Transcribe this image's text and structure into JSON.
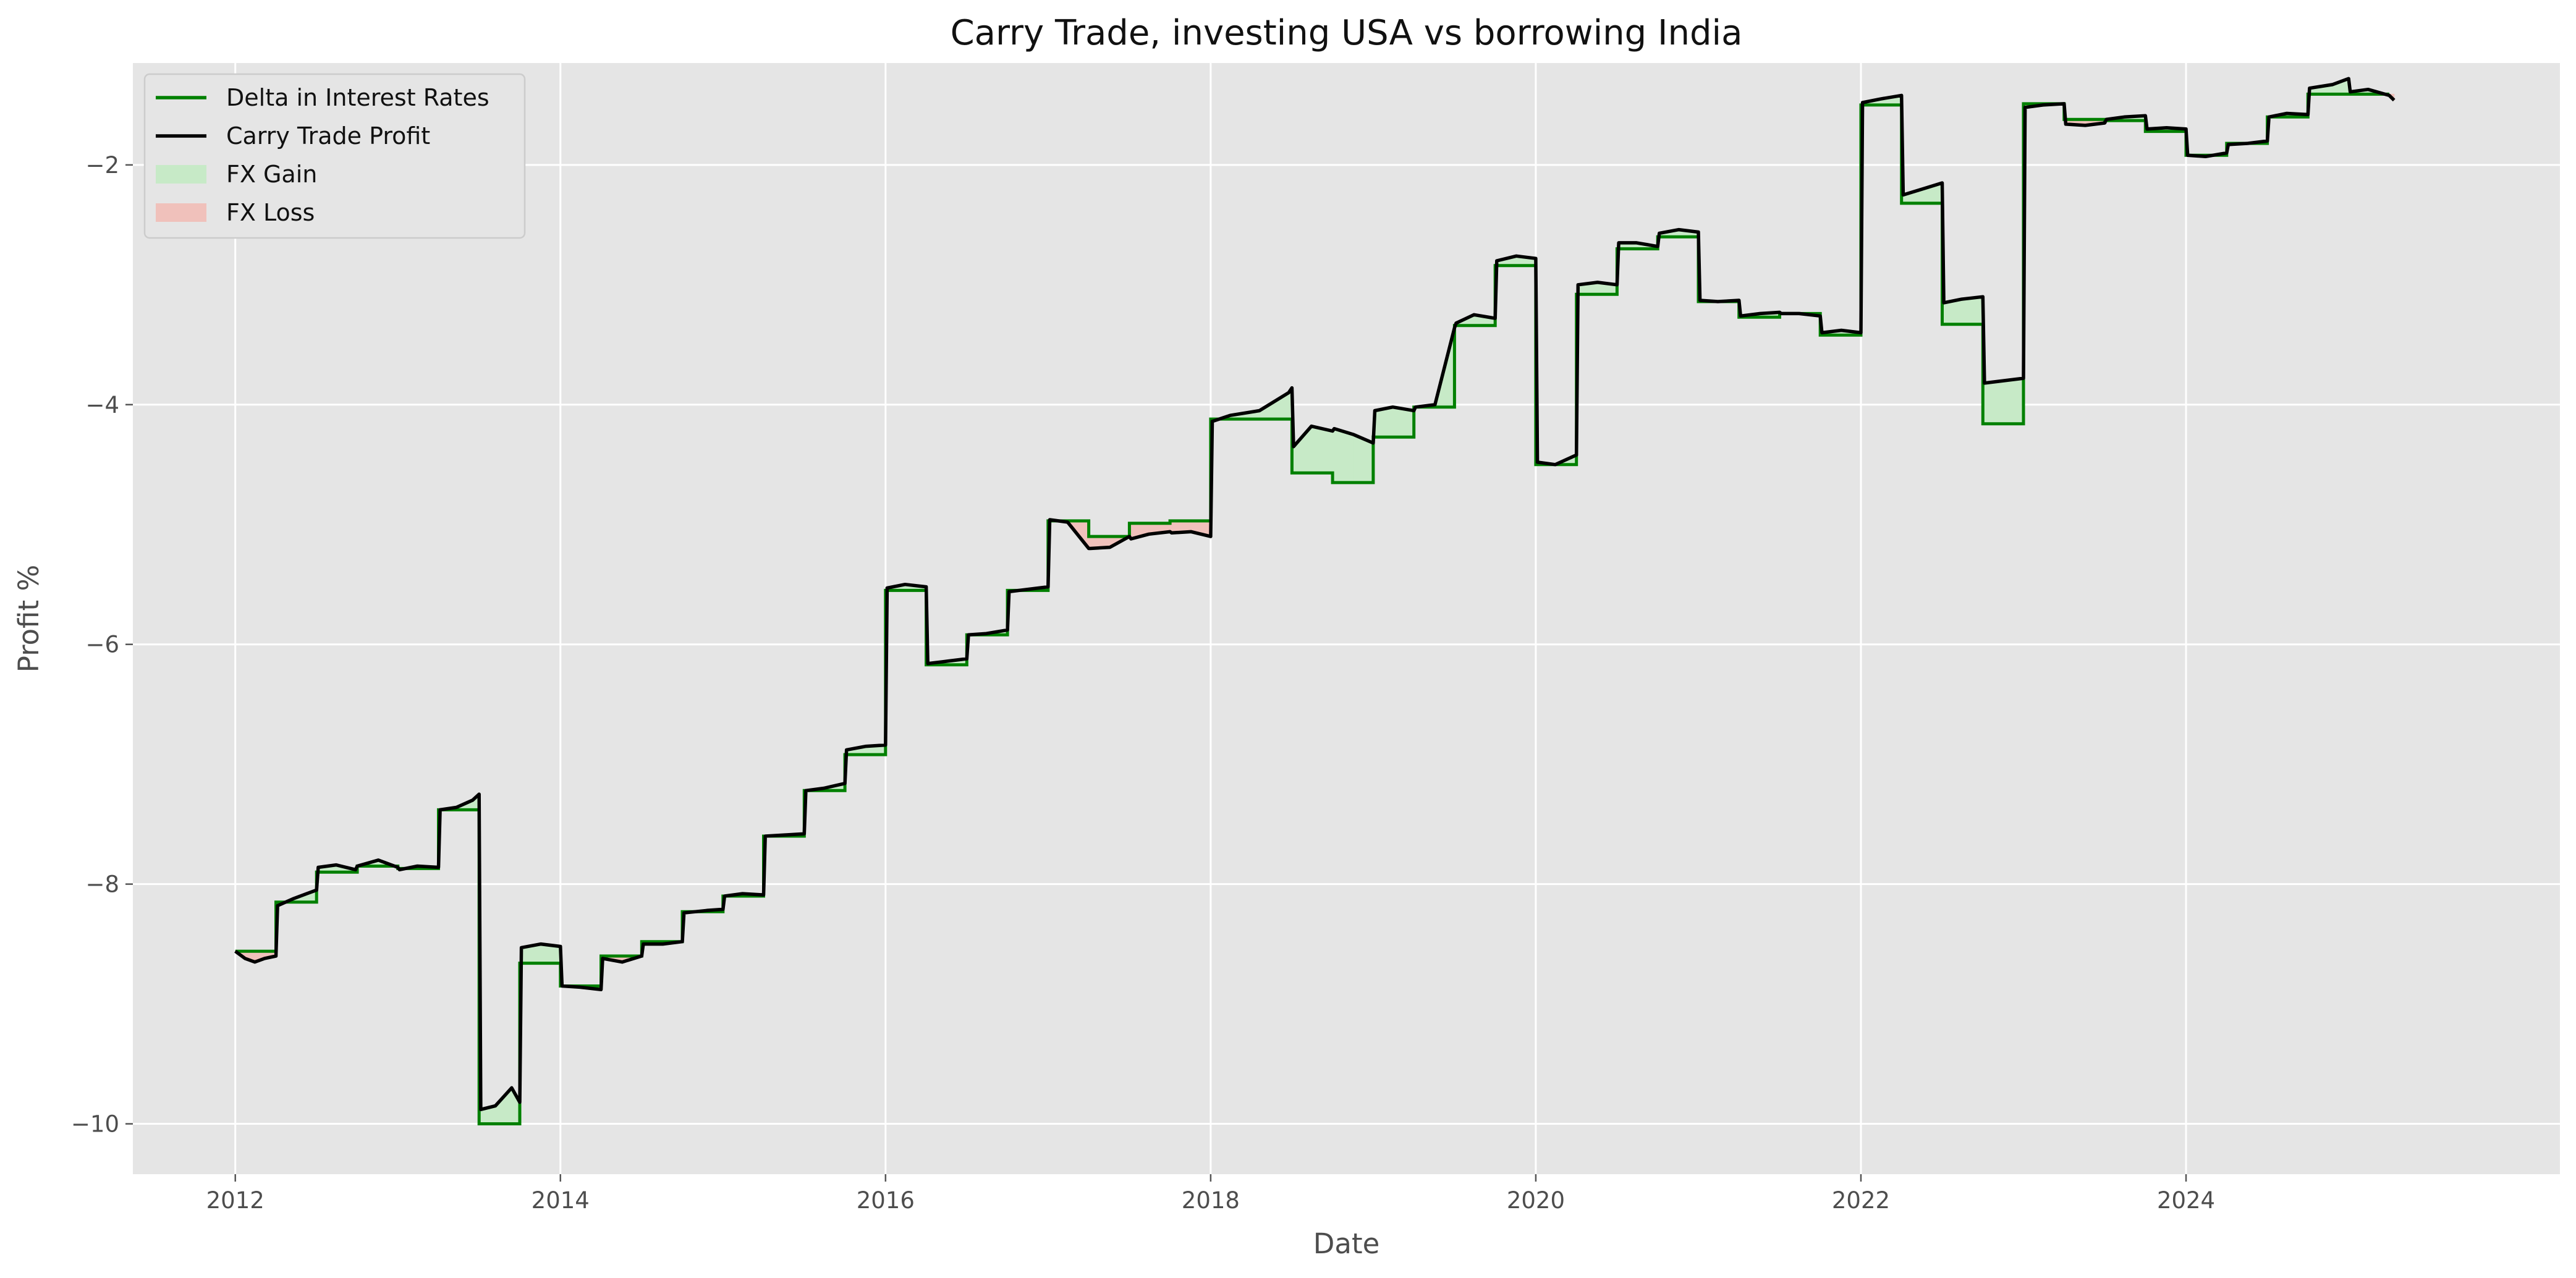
{
  "chart_data": {
    "type": "line",
    "title": "Carry Trade, investing USA vs borrowing India",
    "xlabel": "Date",
    "ylabel": "Profit %",
    "xlim": [
      2011.37,
      2026.3
    ],
    "ylim": [
      -10.42,
      -1.15
    ],
    "x_ticks": [
      2012,
      2014,
      2016,
      2018,
      2020,
      2022,
      2024
    ],
    "x_tick_labels": [
      "2012",
      "2014",
      "2016",
      "2018",
      "2020",
      "2022",
      "2024"
    ],
    "y_ticks": [
      -2,
      -4,
      -6,
      -8,
      -10
    ],
    "y_tick_labels": [
      "−2",
      "−4",
      "−6",
      "−8",
      "−10"
    ],
    "grid": true,
    "legend_position": "top-left",
    "colors": {
      "delta": "#008000",
      "profit": "#000000",
      "gain": "#c7eac7",
      "loss": "#f0c1bb",
      "plot_bg": "#e5e5e5",
      "grid": "#ffffff"
    },
    "legend": [
      {
        "label": "Delta in Interest Rates",
        "kind": "line",
        "color": "#008000"
      },
      {
        "label": "Carry Trade Profit",
        "kind": "line",
        "color": "#000000"
      },
      {
        "label": "FX Gain",
        "kind": "patch",
        "color": "#c7eac7"
      },
      {
        "label": "FX Loss",
        "kind": "patch",
        "color": "#f0c1bb"
      }
    ],
    "series": [
      {
        "name": "Delta in Interest Rates",
        "step_x": [
          2012.0,
          2012.25,
          2012.5,
          2012.75,
          2013.0,
          2013.25,
          2013.5,
          2013.75,
          2014.0,
          2014.25,
          2014.5,
          2014.75,
          2015.0,
          2015.25,
          2015.5,
          2015.75,
          2016.0,
          2016.25,
          2016.5,
          2016.75,
          2017.0,
          2017.25,
          2017.5,
          2017.75,
          2018.0,
          2018.25,
          2018.5,
          2018.75,
          2019.0,
          2019.25,
          2019.5,
          2019.75,
          2020.0,
          2020.25,
          2020.5,
          2020.75,
          2021.0,
          2021.25,
          2021.5,
          2021.75,
          2022.0,
          2022.25,
          2022.5,
          2022.75,
          2023.0,
          2023.25,
          2023.5,
          2023.75,
          2024.0,
          2024.25,
          2024.5,
          2024.75,
          2025.0,
          2025.25
        ],
        "values": [
          -8.56,
          -8.15,
          -7.9,
          -7.85,
          -7.87,
          -7.38,
          -10.0,
          -8.66,
          -8.85,
          -8.6,
          -8.48,
          -8.23,
          -8.1,
          -7.6,
          -7.22,
          -6.92,
          -5.55,
          -6.17,
          -5.92,
          -5.55,
          -4.97,
          -5.1,
          -4.99,
          -4.97,
          -4.12,
          -4.12,
          -4.57,
          -4.65,
          -4.27,
          -4.02,
          -3.34,
          -2.84,
          -4.5,
          -3.08,
          -2.7,
          -2.6,
          -3.14,
          -3.27,
          -3.24,
          -3.42,
          -1.5,
          -2.32,
          -3.33,
          -4.16,
          -1.49,
          -1.62,
          -1.63,
          -1.72,
          -1.92,
          -1.82,
          -1.6,
          -1.41,
          -1.41
        ]
      },
      {
        "name": "Carry Trade Profit",
        "x": [
          2012.0,
          2012.06,
          2012.12,
          2012.18,
          2012.25,
          2012.26,
          2012.36,
          2012.44,
          2012.5,
          2012.51,
          2012.62,
          2012.74,
          2012.75,
          2012.88,
          2013.0,
          2013.01,
          2013.12,
          2013.25,
          2013.26,
          2013.36,
          2013.46,
          2013.5,
          2013.51,
          2013.6,
          2013.7,
          2013.75,
          2013.76,
          2013.88,
          2014.0,
          2014.01,
          2014.12,
          2014.25,
          2014.26,
          2014.38,
          2014.5,
          2014.51,
          2014.63,
          2014.75,
          2014.76,
          2014.9,
          2015.0,
          2015.01,
          2015.12,
          2015.25,
          2015.26,
          2015.38,
          2015.5,
          2015.51,
          2015.62,
          2015.75,
          2015.76,
          2015.88,
          2016.0,
          2016.01,
          2016.12,
          2016.25,
          2016.26,
          2016.38,
          2016.5,
          2016.51,
          2016.62,
          2016.75,
          2016.76,
          2016.88,
          2017.0,
          2017.01,
          2017.12,
          2017.25,
          2017.26,
          2017.38,
          2017.5,
          2017.51,
          2017.62,
          2017.75,
          2017.76,
          2017.88,
          2018.0,
          2018.01,
          2018.12,
          2018.3,
          2018.48,
          2018.5,
          2018.51,
          2018.62,
          2018.75,
          2018.76,
          2018.88,
          2019.0,
          2019.01,
          2019.12,
          2019.25,
          2019.26,
          2019.38,
          2019.5,
          2019.51,
          2019.62,
          2019.75,
          2019.76,
          2019.88,
          2020.0,
          2020.01,
          2020.12,
          2020.25,
          2020.26,
          2020.38,
          2020.5,
          2020.51,
          2020.62,
          2020.75,
          2020.76,
          2020.88,
          2021.0,
          2021.01,
          2021.12,
          2021.25,
          2021.26,
          2021.38,
          2021.5,
          2021.51,
          2021.62,
          2021.75,
          2021.76,
          2021.88,
          2022.0,
          2022.01,
          2022.12,
          2022.25,
          2022.26,
          2022.38,
          2022.5,
          2022.51,
          2022.62,
          2022.75,
          2022.76,
          2022.88,
          2023.0,
          2023.01,
          2023.12,
          2023.25,
          2023.26,
          2023.38,
          2023.5,
          2023.51,
          2023.62,
          2023.75,
          2023.76,
          2023.88,
          2024.0,
          2024.01,
          2024.12,
          2024.25,
          2024.26,
          2024.38,
          2024.5,
          2024.51,
          2024.62,
          2024.75,
          2024.76,
          2024.9,
          2025.0,
          2025.01,
          2025.12,
          2025.25,
          2025.28
        ],
        "values": [
          -8.56,
          -8.62,
          -8.65,
          -8.62,
          -8.6,
          -8.18,
          -8.12,
          -8.08,
          -8.05,
          -7.86,
          -7.84,
          -7.88,
          -7.85,
          -7.8,
          -7.86,
          -7.88,
          -7.85,
          -7.86,
          -7.38,
          -7.36,
          -7.3,
          -7.25,
          -9.88,
          -9.85,
          -9.7,
          -9.82,
          -8.53,
          -8.5,
          -8.52,
          -8.85,
          -8.86,
          -8.88,
          -8.62,
          -8.65,
          -8.6,
          -8.5,
          -8.5,
          -8.48,
          -8.24,
          -8.22,
          -8.21,
          -8.1,
          -8.08,
          -8.09,
          -7.6,
          -7.59,
          -7.58,
          -7.22,
          -7.2,
          -7.16,
          -6.88,
          -6.85,
          -6.84,
          -5.53,
          -5.5,
          -5.52,
          -6.16,
          -6.14,
          -6.12,
          -5.92,
          -5.91,
          -5.88,
          -5.56,
          -5.54,
          -5.52,
          -4.96,
          -4.98,
          -5.2,
          -5.2,
          -5.19,
          -5.1,
          -5.12,
          -5.08,
          -5.06,
          -5.07,
          -5.06,
          -5.1,
          -4.14,
          -4.09,
          -4.05,
          -3.9,
          -3.86,
          -4.35,
          -4.18,
          -4.22,
          -4.2,
          -4.25,
          -4.32,
          -4.05,
          -4.02,
          -4.05,
          -4.02,
          -4.0,
          -3.36,
          -3.32,
          -3.25,
          -3.28,
          -2.8,
          -2.76,
          -2.78,
          -4.48,
          -4.5,
          -4.42,
          -3.0,
          -2.98,
          -3.0,
          -2.65,
          -2.65,
          -2.68,
          -2.57,
          -2.54,
          -2.56,
          -3.13,
          -3.14,
          -3.13,
          -3.26,
          -3.24,
          -3.23,
          -3.24,
          -3.24,
          -3.26,
          -3.4,
          -3.38,
          -3.4,
          -1.48,
          -1.45,
          -1.42,
          -2.25,
          -2.2,
          -2.15,
          -3.15,
          -3.12,
          -3.1,
          -3.82,
          -3.8,
          -3.78,
          -1.52,
          -1.5,
          -1.49,
          -1.66,
          -1.67,
          -1.65,
          -1.62,
          -1.6,
          -1.59,
          -1.7,
          -1.69,
          -1.7,
          -1.92,
          -1.93,
          -1.9,
          -1.83,
          -1.82,
          -1.8,
          -1.6,
          -1.57,
          -1.58,
          -1.36,
          -1.33,
          -1.28,
          -1.39,
          -1.37,
          -1.42,
          -1.46
        ]
      }
    ]
  }
}
